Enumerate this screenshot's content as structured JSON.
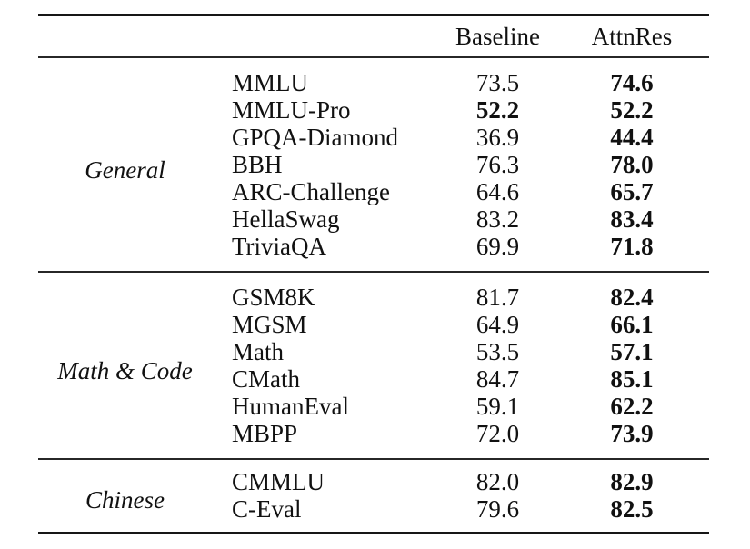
{
  "table": {
    "header": {
      "category_label": "",
      "benchmark_label": "",
      "baseline": "Baseline",
      "attnres": "AttnRes"
    },
    "rule_color": "#161616",
    "sections": [
      {
        "category": "General",
        "rows": [
          {
            "name": "MMLU",
            "baseline": "73.5",
            "baseline_bold": false,
            "attnres": "74.6"
          },
          {
            "name": "MMLU-Pro",
            "baseline": "52.2",
            "baseline_bold": true,
            "attnres": "52.2"
          },
          {
            "name": "GPQA-Diamond",
            "baseline": "36.9",
            "baseline_bold": false,
            "attnres": "44.4"
          },
          {
            "name": "BBH",
            "baseline": "76.3",
            "baseline_bold": false,
            "attnres": "78.0"
          },
          {
            "name": "ARC-Challenge",
            "baseline": "64.6",
            "baseline_bold": false,
            "attnres": "65.7"
          },
          {
            "name": "HellaSwag",
            "baseline": "83.2",
            "baseline_bold": false,
            "attnres": "83.4"
          },
          {
            "name": "TriviaQA",
            "baseline": "69.9",
            "baseline_bold": false,
            "attnres": "71.8"
          }
        ]
      },
      {
        "category": "Math & Code",
        "rows": [
          {
            "name": "GSM8K",
            "baseline": "81.7",
            "baseline_bold": false,
            "attnres": "82.4"
          },
          {
            "name": "MGSM",
            "baseline": "64.9",
            "baseline_bold": false,
            "attnres": "66.1"
          },
          {
            "name": "Math",
            "baseline": "53.5",
            "baseline_bold": false,
            "attnres": "57.1"
          },
          {
            "name": "CMath",
            "baseline": "84.7",
            "baseline_bold": false,
            "attnres": "85.1"
          },
          {
            "name": "HumanEval",
            "baseline": "59.1",
            "baseline_bold": false,
            "attnres": "62.2"
          },
          {
            "name": "MBPP",
            "baseline": "72.0",
            "baseline_bold": false,
            "attnres": "73.9"
          }
        ]
      },
      {
        "category": "Chinese",
        "rows": [
          {
            "name": "CMMLU",
            "baseline": "82.0",
            "baseline_bold": false,
            "attnres": "82.9"
          },
          {
            "name": "C-Eval",
            "baseline": "79.6",
            "baseline_bold": false,
            "attnres": "82.5"
          }
        ]
      }
    ]
  }
}
